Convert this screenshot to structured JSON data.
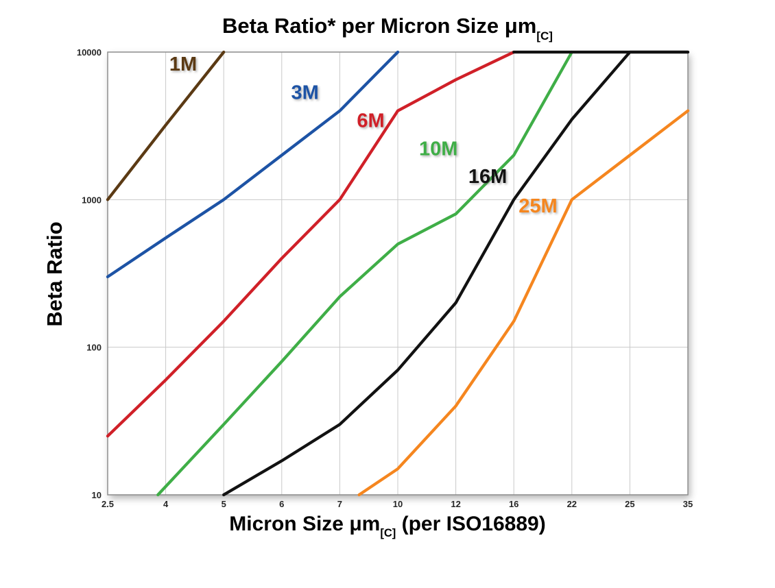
{
  "title": {
    "main": "Beta Ratio* per Micron Size μm",
    "subscript": "[C]"
  },
  "x_axis": {
    "label_pre": "Micron Size μm",
    "label_sub": "[C]",
    "label_post": " (per ISO16889)",
    "ticks": [
      "2.5",
      "4",
      "5",
      "6",
      "7",
      "10",
      "12",
      "16",
      "22",
      "25",
      "35"
    ]
  },
  "y_axis": {
    "label": "Beta Ratio",
    "ticks": [
      "10000",
      "1000",
      "100",
      "10"
    ]
  },
  "chart_data": {
    "type": "line",
    "title": "Beta Ratio* per Micron Size μm[C]",
    "xlabel": "Micron Size μm[C] (per ISO16889)",
    "ylabel": "Beta Ratio",
    "x_ticks": [
      2.5,
      4,
      5,
      6,
      7,
      10,
      12,
      16,
      22,
      25,
      35
    ],
    "y_scale": "log",
    "ylim": [
      10,
      10000
    ],
    "y_gridlines": [
      10,
      100,
      1000,
      10000
    ],
    "grid": true,
    "legend_position": "inline-labels",
    "series": [
      {
        "name": "1M",
        "color": "#5b3a14",
        "label_at": [
          4.3,
          7500
        ],
        "points": [
          [
            2.5,
            1000
          ],
          [
            4,
            3200
          ],
          [
            5,
            10000
          ]
        ]
      },
      {
        "name": "3M",
        "color": "#1d53a5",
        "label_at": [
          6.4,
          4800
        ],
        "points": [
          [
            2.5,
            300
          ],
          [
            4,
            550
          ],
          [
            5,
            1000
          ],
          [
            6,
            2000
          ],
          [
            7,
            4000
          ],
          [
            10,
            10000
          ]
        ]
      },
      {
        "name": "6M",
        "color": "#d02028",
        "label_at": [
          8.6,
          3100
        ],
        "points": [
          [
            2.5,
            25
          ],
          [
            4,
            60
          ],
          [
            5,
            150
          ],
          [
            6,
            400
          ],
          [
            7,
            1000
          ],
          [
            10,
            4000
          ],
          [
            12,
            6500
          ],
          [
            16,
            10000
          ]
        ]
      },
      {
        "name": "10M",
        "color": "#3fae47",
        "label_at": [
          11.4,
          2000
        ],
        "points": [
          [
            3.8,
            10
          ],
          [
            5,
            30
          ],
          [
            6,
            80
          ],
          [
            7,
            220
          ],
          [
            10,
            500
          ],
          [
            12,
            800
          ],
          [
            16,
            2000
          ],
          [
            22,
            10000
          ]
        ]
      },
      {
        "name": "16M",
        "color": "#121212",
        "label_at": [
          14.2,
          1300
        ],
        "points": [
          [
            5,
            10
          ],
          [
            6,
            17
          ],
          [
            7,
            30
          ],
          [
            10,
            70
          ],
          [
            12,
            200
          ],
          [
            16,
            1000
          ],
          [
            22,
            3500
          ],
          [
            25,
            10000
          ],
          [
            35,
            10000
          ]
        ]
      },
      {
        "name": "25M",
        "color": "#f5861f",
        "label_at": [
          18.5,
          820
        ],
        "points": [
          [
            8,
            10
          ],
          [
            10,
            15
          ],
          [
            12,
            40
          ],
          [
            16,
            150
          ],
          [
            22,
            1000
          ],
          [
            25,
            2000
          ],
          [
            35,
            4000
          ]
        ]
      }
    ],
    "cap_line": {
      "color": "#121212",
      "points": [
        [
          16,
          10000
        ],
        [
          35,
          10000
        ]
      ]
    }
  }
}
